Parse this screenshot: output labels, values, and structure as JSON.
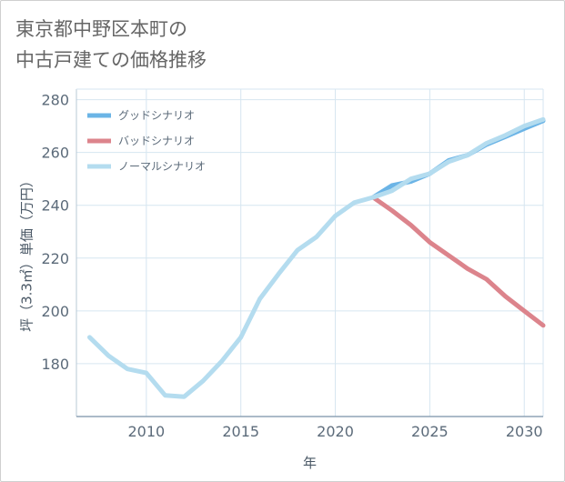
{
  "title_lines": [
    "東京都中野区本町の",
    "中古戸建ての価格推移"
  ],
  "chart_data": {
    "type": "line",
    "title": "東京都中野区本町の中古戸建ての価格推移",
    "xlabel": "年",
    "ylabel": "坪（3.3㎡）単価（万円）",
    "xlim": [
      2006.3,
      2031
    ],
    "ylim": [
      160,
      284
    ],
    "xticks": [
      2010,
      2015,
      2020,
      2025,
      2030
    ],
    "yticks": [
      180,
      200,
      220,
      240,
      260,
      280
    ],
    "grid": true,
    "legend_position": "top-left",
    "series": [
      {
        "name": "グッドシナリオ",
        "color": "#6bb4e6",
        "x": [
          2022,
          2023,
          2024,
          2025,
          2026,
          2027,
          2028,
          2029,
          2030,
          2031
        ],
        "values": [
          243,
          247.5,
          249,
          252,
          257,
          259,
          263,
          266,
          269,
          272
        ]
      },
      {
        "name": "バッドシナリオ",
        "color": "#dc848c",
        "x": [
          2022,
          2023,
          2024,
          2025,
          2026,
          2027,
          2028,
          2029,
          2030,
          2031
        ],
        "values": [
          243,
          238,
          232.5,
          226,
          221,
          216,
          212,
          205.5,
          200,
          194.5
        ]
      },
      {
        "name": "ノーマルシナリオ",
        "color": "#b4dcef",
        "x": [
          2007,
          2008,
          2009,
          2010,
          2011,
          2012,
          2013,
          2014,
          2015,
          2016,
          2017,
          2018,
          2019,
          2020,
          2021,
          2022,
          2023,
          2024,
          2025,
          2026,
          2027,
          2028,
          2029,
          2030,
          2031
        ],
        "values": [
          190,
          183,
          178,
          176.5,
          168,
          167.5,
          173.5,
          181,
          190,
          204.5,
          214,
          223,
          228,
          236,
          241,
          243,
          245.5,
          250,
          252,
          256.5,
          259,
          263.5,
          266.5,
          270,
          272.5
        ]
      }
    ]
  }
}
